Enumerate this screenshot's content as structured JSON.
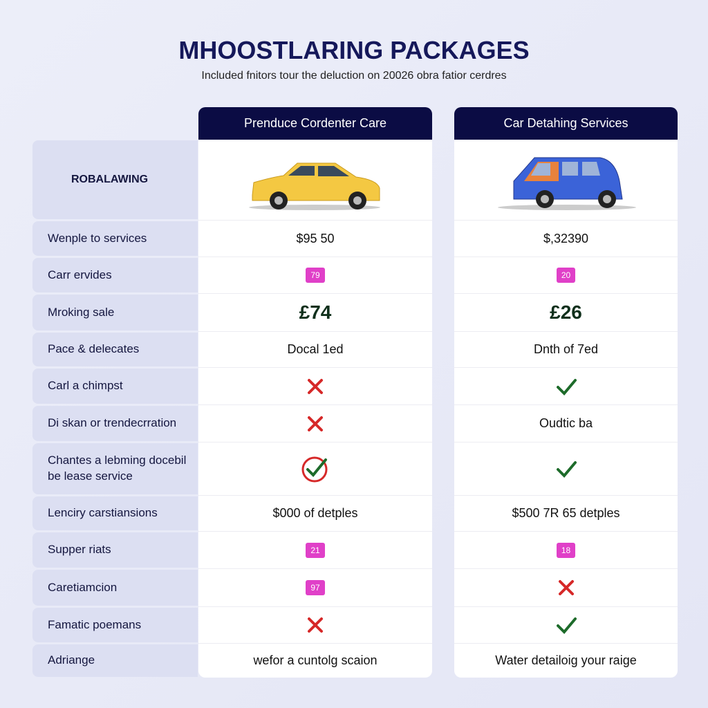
{
  "header": {
    "title": "MHOOSTLARING PACKAGES",
    "subtitle": "Included fnitors tour the deluction on 20026 obra fatior cerdres"
  },
  "columns": [
    "Prenduce Cordenter Care",
    "Car Detahing Services"
  ],
  "image_row_label": "ROBALAWING",
  "rows": [
    {
      "label": "Wenple to services",
      "cells": [
        {
          "text": "$95 50"
        },
        {
          "text": "$,32390"
        }
      ]
    },
    {
      "label": "Carr ervides",
      "cells": [
        {
          "badge": "79"
        },
        {
          "badge": "20"
        }
      ]
    },
    {
      "label": "Mroking sale",
      "cells": [
        {
          "text": "£74",
          "style": "large"
        },
        {
          "text": "£26",
          "style": "large"
        }
      ]
    },
    {
      "label": "Pace & delecates",
      "cells": [
        {
          "text": "Docal 1ed"
        },
        {
          "text": "Dnth of 7ed"
        }
      ]
    },
    {
      "label": "Carl a chimpst",
      "cells": [
        {
          "icon": "cross"
        },
        {
          "icon": "check"
        }
      ]
    },
    {
      "label": "Di skan or trendecrration",
      "cells": [
        {
          "icon": "cross"
        },
        {
          "text": "Oudtic ba"
        }
      ]
    },
    {
      "label": "Chantes a lebming docebil be lease service",
      "cells": [
        {
          "icon": "circle-check"
        },
        {
          "icon": "check"
        }
      ]
    },
    {
      "label": "Lenciry carstiansions",
      "cells": [
        {
          "text": "$000 of detples"
        },
        {
          "text": "$500 7R 65 detples"
        }
      ]
    },
    {
      "label": "Supper riats",
      "cells": [
        {
          "badge": "21"
        },
        {
          "badge": "18"
        }
      ]
    },
    {
      "label": "Caretiamcion",
      "cells": [
        {
          "badge": "97"
        },
        {
          "icon": "cross"
        }
      ]
    },
    {
      "label": "Famatic poemans",
      "cells": [
        {
          "icon": "cross"
        },
        {
          "icon": "check"
        }
      ]
    },
    {
      "label": "Adriange",
      "cells": [
        {
          "text": "wefor a cuntolg scaion"
        },
        {
          "text": "Water detailoig your raige"
        }
      ]
    }
  ]
}
